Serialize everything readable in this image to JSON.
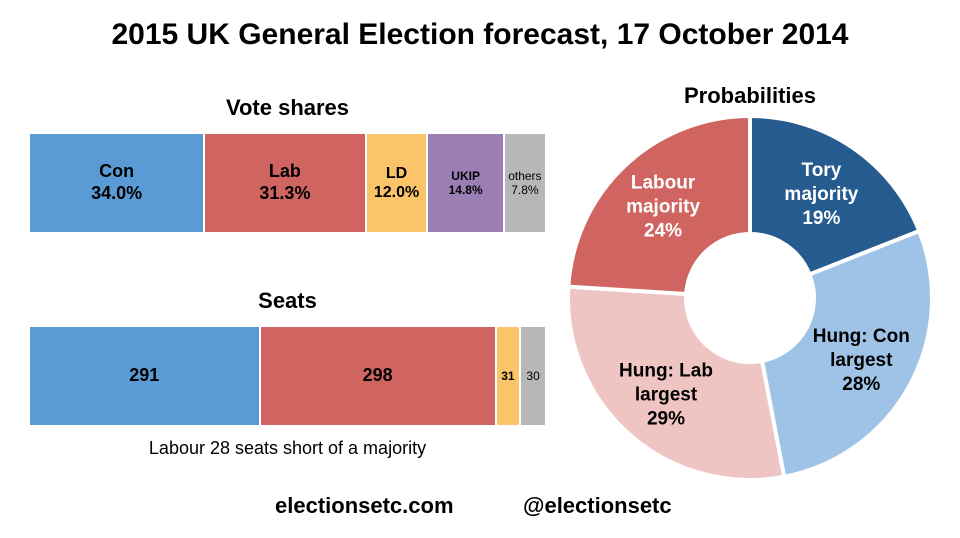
{
  "title": "2015 UK General Election forecast, 17 October 2014",
  "colors": {
    "con": "#5b9bd5",
    "lab": "#d06461",
    "ld": "#fcc469",
    "ukip": "#9b7fb4",
    "others": "#b7b7b7",
    "tory_majority": "#255b8e",
    "hung_con": "#9fc3e6",
    "hung_lab": "#efc5c4",
    "labour_majority": "#d06461"
  },
  "footer": {
    "site": "electionsetc.com",
    "handle": "@electionsetc"
  },
  "chart_data": [
    {
      "type": "bar",
      "stacked": "horizontal-100",
      "title": "Vote shares",
      "categories": [
        "Con",
        "Lab",
        "LD",
        "UKIP",
        "others"
      ],
      "values": [
        34.0,
        31.3,
        12.0,
        14.8,
        7.8
      ],
      "value_labels": [
        "34.0%",
        "31.3%",
        "12.0%",
        "14.8%",
        "7.8%"
      ]
    },
    {
      "type": "bar",
      "stacked": "horizontal-100",
      "title": "Seats",
      "categories": [
        "Con",
        "Lab",
        "LD",
        "others"
      ],
      "values": [
        291,
        298,
        31,
        30
      ],
      "value_labels": [
        "291",
        "298",
        "31",
        "30"
      ],
      "note": "Labour 28 seats short of a majority"
    },
    {
      "type": "pie",
      "donut": true,
      "title": "Probabilities",
      "slices": [
        {
          "label_lines": [
            "Tory",
            "majority"
          ],
          "value": 19,
          "value_label": "19%"
        },
        {
          "label_lines": [
            "Hung: Con",
            "largest"
          ],
          "value": 28,
          "value_label": "28%"
        },
        {
          "label_lines": [
            "Hung: Lab",
            "largest"
          ],
          "value": 29,
          "value_label": "29%"
        },
        {
          "label_lines": [
            "Labour",
            "majority"
          ],
          "value": 24,
          "value_label": "24%"
        }
      ]
    }
  ]
}
